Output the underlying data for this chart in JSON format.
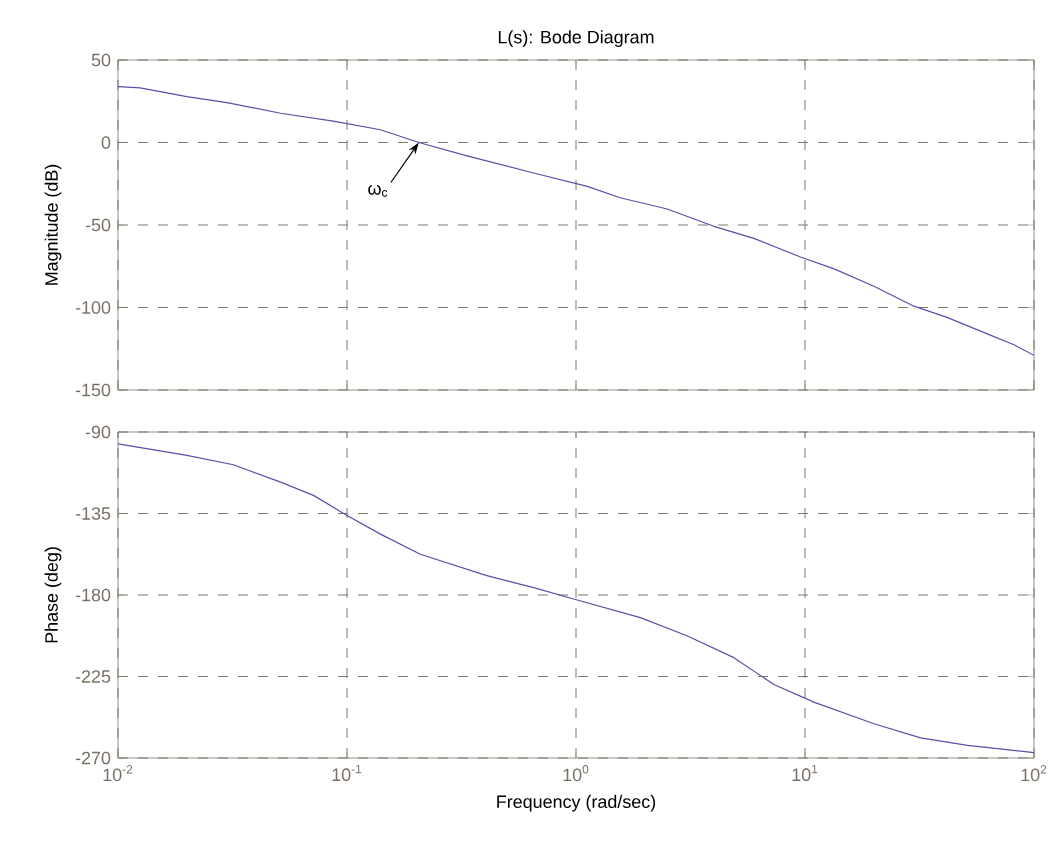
{
  "chart_data": [
    {
      "type": "line",
      "title": "L(s): Bode Diagram",
      "ylabel": "Magnitude (dB)",
      "color": "#5a4ea8",
      "x": [
        0.01,
        0.0125,
        0.02,
        0.0299,
        0.0513,
        0.0871,
        0.14,
        0.206,
        0.334,
        0.653,
        1.12,
        1.56,
        2.5,
        4.0,
        5.98,
        9.55,
        13.4,
        20,
        29.9,
        41.7,
        62.5,
        81.8,
        100
      ],
      "values": [
        33.9,
        33.1,
        27.8,
        24.2,
        17.7,
        12.9,
        7.7,
        0,
        -8.1,
        -18.5,
        -26.6,
        -33.5,
        -40.3,
        -50.8,
        -58.1,
        -69.4,
        -76.6,
        -87.1,
        -99.2,
        -106,
        -116,
        -122.6,
        -129
      ],
      "log": "x",
      "grid": true,
      "tick_labels": "y",
      "xlim": [
        0.01,
        100
      ],
      "ylim": [
        -150,
        50
      ],
      "xticks": [
        {
          "value": 0.01,
          "label": null
        },
        {
          "value": 0.1,
          "label": null
        },
        {
          "value": 1,
          "label": null
        },
        {
          "value": 10,
          "label": null
        },
        {
          "value": 100,
          "label": null
        }
      ],
      "yticks": [
        -150,
        -100,
        -50,
        0,
        50
      ],
      "annotations": [
        {
          "text": "ω$_{c}$",
          "x": 0.206,
          "y": 0
        }
      ]
    },
    {
      "type": "line",
      "xlabel": "Frequency (rad/sec)",
      "ylabel": "Phase (deg)",
      "color": "#5a4ea8",
      "x": [
        0.01,
        0.02,
        0.0319,
        0.0513,
        0.0714,
        0.1,
        0.14,
        0.209,
        0.408,
        0.653,
        0.977,
        1.91,
        3.05,
        4.89,
        7.31,
        11,
        20,
        32,
        51.3,
        100
      ],
      "values": [
        -96.6,
        -102.9,
        -108.1,
        -117.7,
        -125,
        -136.1,
        -146.4,
        -157.5,
        -169.3,
        -175.9,
        -182.2,
        -192.5,
        -202.5,
        -214.6,
        -229.4,
        -239.3,
        -251.1,
        -258.9,
        -263,
        -267
      ],
      "log": "x",
      "grid": true,
      "xlim": [
        0.01,
        100
      ],
      "ylim": [
        -270,
        -90
      ],
      "xticks": [
        {
          "value": 0.01,
          "label": "10$^{-2}$"
        },
        {
          "value": 0.1,
          "label": "10$^{-1}$"
        },
        {
          "value": 1,
          "label": "10$^{0}$"
        },
        {
          "value": 10,
          "label": "10$^{1}$"
        },
        {
          "value": 100,
          "label": "10$^{2}$"
        }
      ],
      "yticks": [
        -270,
        -225,
        -180,
        -135,
        -90
      ]
    }
  ]
}
